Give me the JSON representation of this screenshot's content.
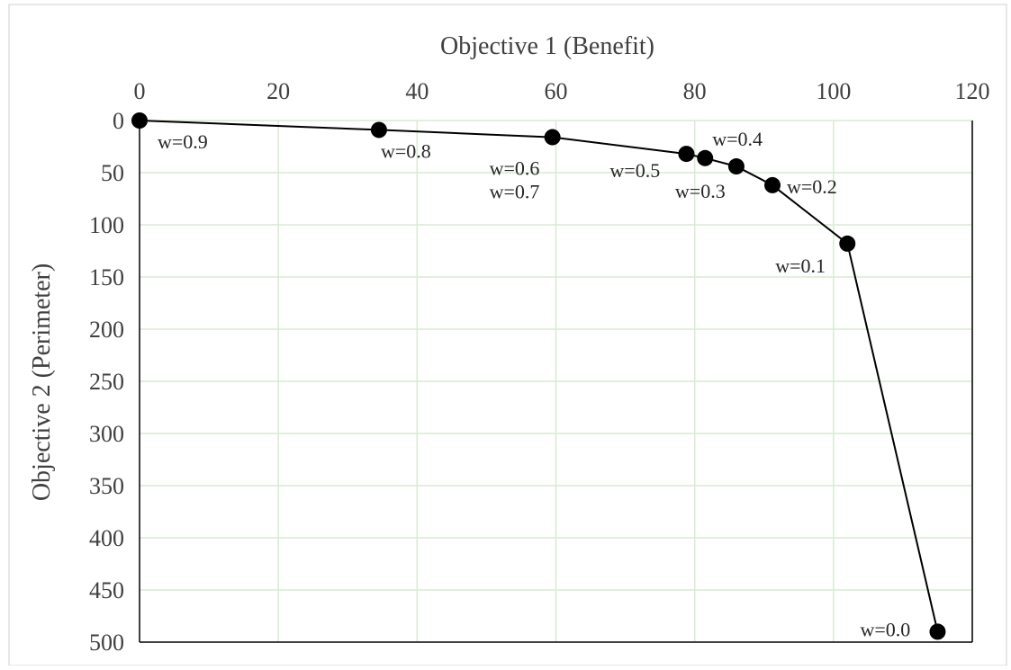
{
  "chart_data": {
    "type": "scatter",
    "xlabel": "Objective 1 (Benefit)",
    "ylabel": "Objective 2 (Perimeter)",
    "xlim": [
      0,
      120
    ],
    "ylim": [
      0,
      500
    ],
    "y_axis_reversed": true,
    "x_axis_position": "top",
    "x_ticks": [
      "0",
      "20",
      "40",
      "60",
      "80",
      "100",
      "120"
    ],
    "y_ticks": [
      "0",
      "50",
      "100",
      "150",
      "200",
      "250",
      "300",
      "350",
      "400",
      "450",
      "500"
    ],
    "grid": true,
    "lines_connect_points": true,
    "series": [
      {
        "points": [
          {
            "label": "w=0.9",
            "x": 0,
            "y": 0
          },
          {
            "label": "w=0.8",
            "x": 34.5,
            "y": 9
          },
          {
            "label": "w=0.6\nw=0.7",
            "x": 59.5,
            "y": 16
          },
          {
            "label": "w=0.5",
            "x": 78.8,
            "y": 32
          },
          {
            "label": "w=0.4",
            "x": 81.5,
            "y": 36
          },
          {
            "label": "w=0.3",
            "x": 86,
            "y": 44
          },
          {
            "label": "w=0.2",
            "x": 91.2,
            "y": 62
          },
          {
            "label": "w=0.1",
            "x": 102,
            "y": 118
          },
          {
            "label": "w=0.0",
            "x": 115,
            "y": 490
          }
        ]
      }
    ]
  },
  "colors": {
    "grid": "#d9ead3",
    "line": "#000000",
    "marker": "#000000",
    "text": "#404040"
  }
}
